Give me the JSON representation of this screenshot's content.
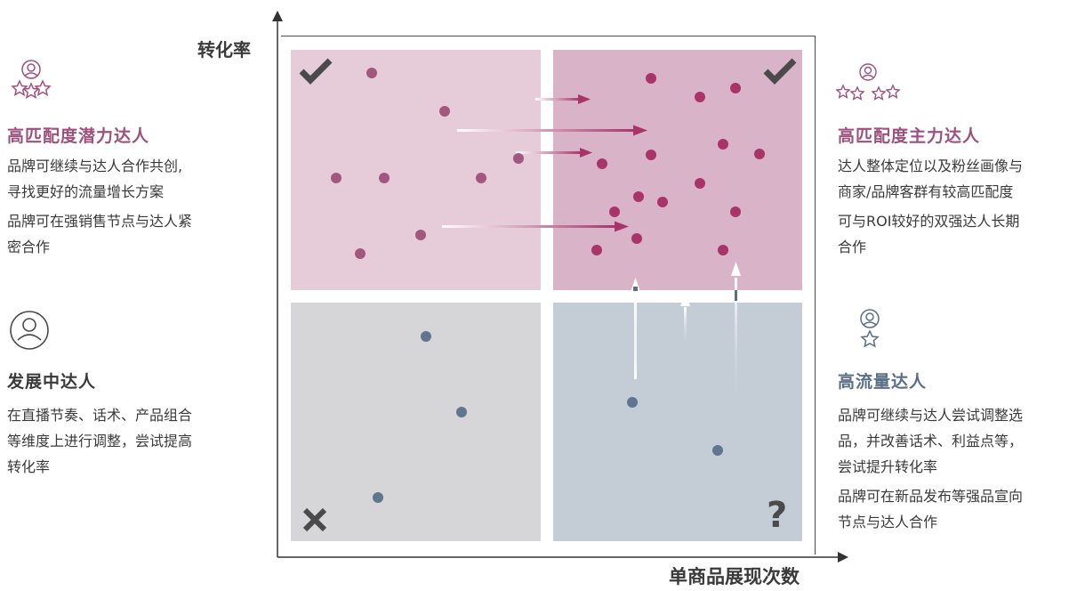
{
  "axes": {
    "y_label": "转化率",
    "x_label": "单商品展现次数"
  },
  "left": {
    "potential": {
      "title": "高匹配度潜力达人",
      "lines": [
        "品牌可继续与达人合作共创,",
        "寻找更好的流量增长方案"
      ],
      "lines2": [
        "品牌可在强销售节点与达人紧",
        "密合作"
      ]
    },
    "developing": {
      "title": "发展中达人",
      "lines": [
        "在直播节奏、话术、产品组合",
        "等维度上进行调整，尝试提高",
        "转化率"
      ]
    }
  },
  "right": {
    "main": {
      "title": "高匹配度主力达人",
      "lines": [
        "达人整体定位以及粉丝画像与",
        "商家/品牌客群有较高匹配度"
      ],
      "lines2": [
        "可与ROI较好的双强达人长期",
        "合作"
      ]
    },
    "traffic": {
      "title": "高流量达人",
      "lines": [
        "品牌可继续与达人尝试调整选",
        "品，并改善话术、利益点等，",
        "尝试提升转化率"
      ],
      "lines2": [
        "品牌可在新品发布等强品宣向",
        "节点与达人合作"
      ]
    }
  },
  "quadrant_marks": {
    "top_left": "check-icon",
    "top_right": "check-icon",
    "bottom_left": "cross-icon",
    "bottom_right": "?"
  },
  "colors": {
    "pink_dot": "#a2577f",
    "magenta_dot": "#a8346a",
    "slate_dot": "#5f7590",
    "pink_text": "#a0507e",
    "slate_text": "#5a6e88"
  }
}
